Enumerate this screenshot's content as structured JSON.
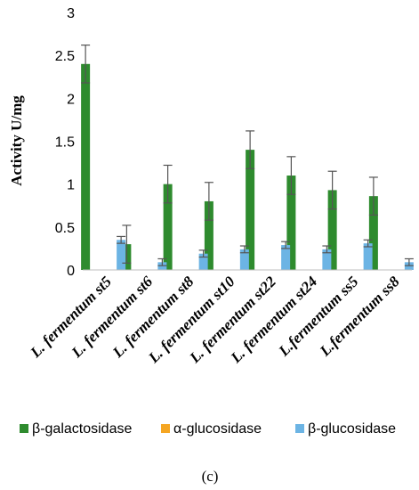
{
  "chart_data": {
    "type": "bar",
    "ylabel": "Activity U/mg",
    "ylim": [
      0,
      3
    ],
    "yticks": [
      "0",
      "0.5",
      "1",
      "1.5",
      "2",
      "2.5",
      "3"
    ],
    "grid": false,
    "legend_position": "bottom",
    "categories": [
      "L. fermentum st5",
      "L. fermentum st6",
      "L. fermentum st8",
      "L. fermentum st10",
      "L. fermentum st22",
      "L. fermentum st24",
      "L.fermentum ss5",
      "L.fermentum ss8"
    ],
    "series": [
      {
        "name": "β-galactosidase",
        "color": "#2e8b2e",
        "values": [
          2.4,
          0.3,
          1.0,
          0.8,
          1.4,
          1.1,
          0.93,
          0.86
        ],
        "errors": [
          0.22,
          0.22,
          0.22,
          0.22,
          0.22,
          0.22,
          0.22,
          0.22
        ]
      },
      {
        "name": "α-glucosidase",
        "color": "#f5a623",
        "values": [
          0,
          0,
          0,
          0,
          0,
          0,
          0,
          0
        ],
        "errors": [
          0,
          0,
          0,
          0,
          0,
          0,
          0,
          0
        ]
      },
      {
        "name": "β-glucosidase",
        "color": "#6cb4e4",
        "values": [
          0.35,
          0.09,
          0.19,
          0.24,
          0.29,
          0.24,
          0.31,
          0.09
        ],
        "errors": [
          0.04,
          0.04,
          0.04,
          0.04,
          0.04,
          0.04,
          0.04,
          0.04
        ]
      }
    ],
    "caption": "(c)"
  }
}
